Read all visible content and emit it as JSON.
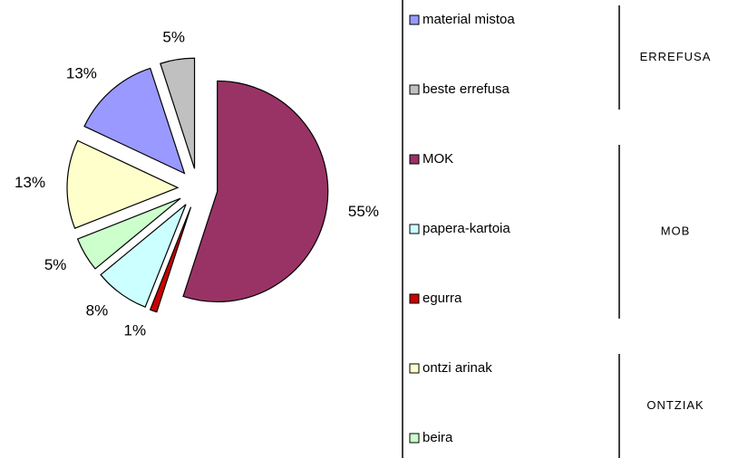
{
  "chart_data": {
    "type": "pie",
    "categories": [
      "MOK",
      "egurra",
      "papera-kartoia",
      "beira",
      "ontzi arinak",
      "material mistoa",
      "beste errefusa"
    ],
    "values": [
      55,
      1,
      8,
      5,
      13,
      13,
      5
    ],
    "value_labels": [
      "55%",
      "1%",
      "8%",
      "5%",
      "13%",
      "13%",
      "5%"
    ],
    "colors": [
      "#993366",
      "#cc0000",
      "#ccffff",
      "#ccffcc",
      "#ffffcc",
      "#9999ff",
      "#c0c0c0"
    ],
    "legend": [
      {
        "title": "ERREFUSA",
        "entries": [
          {
            "name": "material mistoa",
            "color": "#9999ff"
          },
          {
            "name": "beste errefusa",
            "color": "#c0c0c0"
          }
        ]
      },
      {
        "title": "MOB",
        "entries": [
          {
            "name": "MOK",
            "color": "#993366"
          },
          {
            "name": "papera-kartoia",
            "color": "#ccffff"
          },
          {
            "name": "egurra",
            "color": "#cc0000"
          }
        ]
      },
      {
        "title": "ONTZIAK",
        "entries": [
          {
            "name": "ontzi arinak",
            "color": "#ffffcc"
          },
          {
            "name": "beira",
            "color": "#ccffcc"
          }
        ]
      }
    ]
  }
}
